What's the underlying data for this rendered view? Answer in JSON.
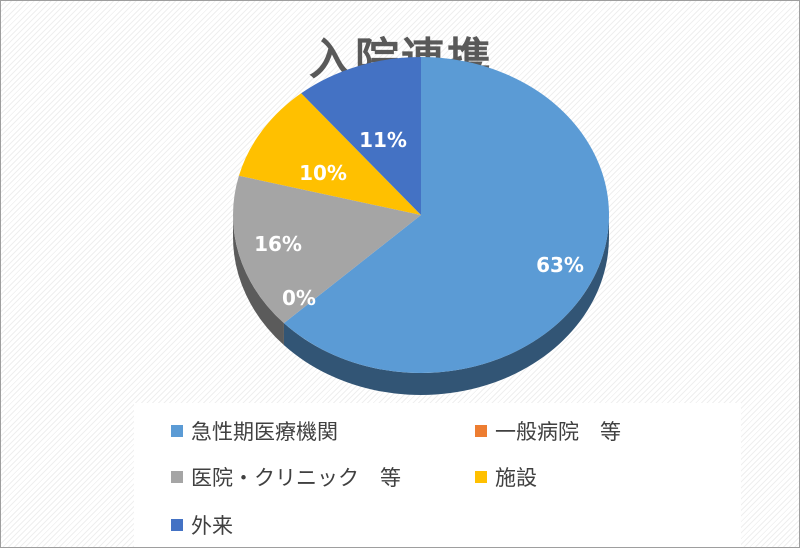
{
  "chart_data": {
    "type": "pie",
    "title": "入院連携",
    "categories": [
      "急性期医療機関",
      "一般病院　等",
      "医院・クリニック　等",
      "施設",
      "外来"
    ],
    "values": [
      63,
      0,
      16,
      10,
      11
    ],
    "labels": [
      "63%",
      "0%",
      "16%",
      "10%",
      "11%"
    ],
    "colors": [
      "#5b9bd5",
      "#ed7d31",
      "#a5a5a5",
      "#ffc000",
      "#4472c4"
    ],
    "style": "3d",
    "legend": "bottom"
  }
}
